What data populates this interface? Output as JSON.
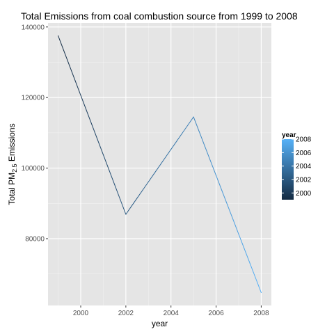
{
  "chart_data": {
    "type": "line",
    "title": "Total Emissions from coal combustion source from 1999 to 2008",
    "xlabel": "year",
    "ylabel_main": "Total PM",
    "ylabel_sub": "2.5",
    "ylabel_end": " Emissions",
    "x": [
      1999,
      2002,
      2005,
      2008
    ],
    "values": [
      137500,
      86900,
      114500,
      64700
    ],
    "xlim": [
      1998.55,
      2008.45
    ],
    "ylim": [
      61060,
      141140
    ],
    "x_ticks": [
      2000,
      2002,
      2004,
      2006,
      2008
    ],
    "x_tick_labels": [
      "2000",
      "2002",
      "2004",
      "2006",
      "2008"
    ],
    "y_ticks": [
      80000,
      100000,
      120000,
      140000
    ],
    "y_tick_labels": [
      "80000",
      "100000",
      "120000",
      "140000"
    ],
    "grid": true,
    "panel_background": "#e5e5e5",
    "legend": {
      "title": "year",
      "placement": "right",
      "range": [
        1999,
        2008
      ],
      "ticks": [
        2000,
        2002,
        2004,
        2006,
        2008
      ],
      "tick_labels": [
        "2000",
        "2002",
        "2004",
        "2006",
        "2008"
      ],
      "color_low": "#132b43",
      "color_high": "#56b1f7"
    }
  }
}
